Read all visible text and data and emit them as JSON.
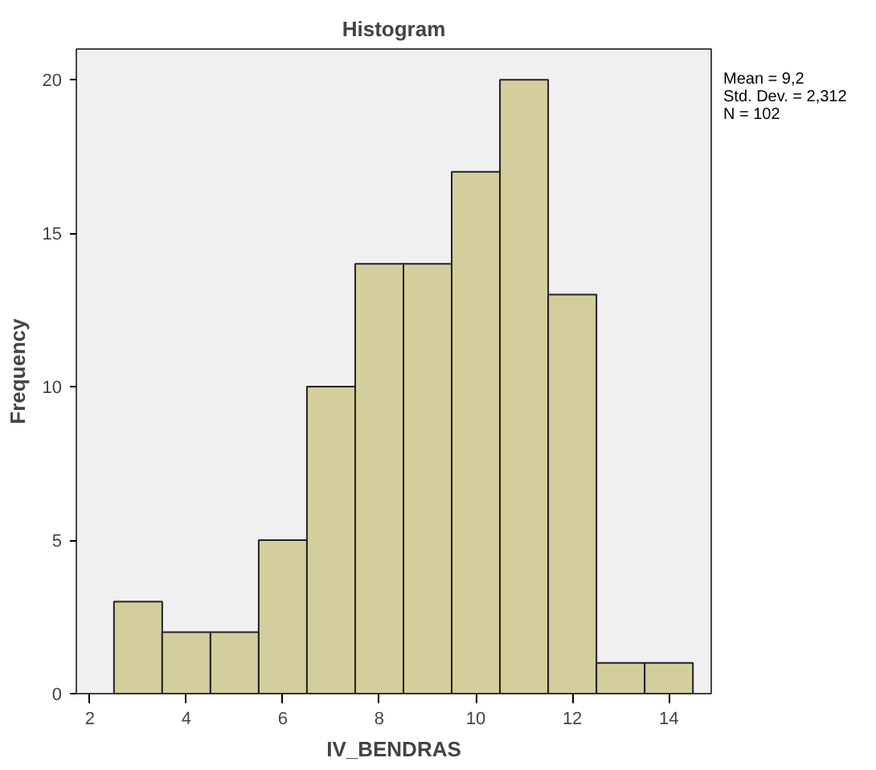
{
  "chart_data": {
    "type": "histogram",
    "title": "Histogram",
    "xlabel": "IV_BENDRAS",
    "ylabel": "Frequency",
    "bins": [
      2.5,
      3.5,
      4.5,
      5.5,
      6.5,
      7.5,
      8.5,
      9.5,
      10.5,
      11.5,
      12.5,
      13.5,
      14.5
    ],
    "values": [
      3,
      2,
      2,
      5,
      10,
      14,
      14,
      17,
      20,
      13,
      1,
      1
    ],
    "color": "#d3ce9b",
    "xlim": [
      1.72,
      14.88
    ],
    "xticks": [
      2,
      4,
      6,
      8,
      10,
      12,
      14
    ],
    "ylim": [
      0,
      21
    ],
    "yticks": [
      0,
      5,
      10,
      15,
      20
    ],
    "grid": false,
    "annotations": [
      "Mean = 9,2",
      "Std. Dev. = 2,312",
      "N = 102"
    ]
  }
}
